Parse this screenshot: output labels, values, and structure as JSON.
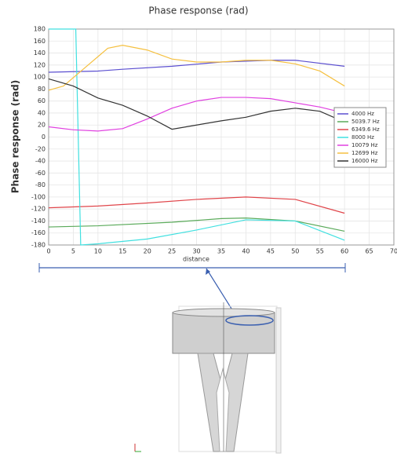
{
  "chart_data": {
    "type": "line",
    "title": "Phase response (rad)",
    "x_label": "distance",
    "y_label": "Phase response (rad)",
    "xlim": [
      0,
      70
    ],
    "xticks": [
      0,
      5,
      10,
      15,
      20,
      25,
      30,
      35,
      40,
      45,
      50,
      55,
      60,
      65,
      70
    ],
    "ylim": [
      -180,
      180
    ],
    "yticks": [
      -180,
      -160,
      -140,
      -120,
      -100,
      -80,
      -60,
      -40,
      -20,
      0,
      20,
      40,
      60,
      80,
      100,
      120,
      140,
      160,
      180
    ],
    "grid": true,
    "legend": "right",
    "series": [
      {
        "name": "4000 Hz",
        "color": "#5b4fd0",
        "x": [
          0,
          10,
          15,
          25,
          35,
          45,
          50,
          60
        ],
        "values": [
          108,
          110,
          113,
          118,
          125,
          128,
          128,
          118
        ]
      },
      {
        "name": "5039.7 Hz",
        "color": "#5aaa5a",
        "x": [
          0,
          10,
          25,
          35,
          40,
          50,
          60
        ],
        "values": [
          -150,
          -148,
          -142,
          -136,
          -135,
          -140,
          -157
        ]
      },
      {
        "name": "6349.6 Hz",
        "color": "#e0454a",
        "x": [
          0,
          10,
          20,
          30,
          40,
          50,
          60
        ],
        "values": [
          -118,
          -115,
          -110,
          -104,
          -100,
          -104,
          -127
        ]
      },
      {
        "name": "8000 Hz",
        "color": "#40e0e0",
        "x": [
          0,
          5.5,
          6.5,
          10,
          20,
          30,
          40,
          50,
          60
        ],
        "values": [
          180,
          180,
          -180,
          -178,
          -170,
          -155,
          -138,
          -140,
          -172
        ]
      },
      {
        "name": "10079 Hz",
        "color": "#e040e0",
        "x": [
          0,
          5,
          10,
          15,
          20,
          25,
          30,
          35,
          40,
          45,
          50,
          55,
          60
        ],
        "values": [
          17,
          12,
          10,
          14,
          30,
          48,
          60,
          66,
          66,
          64,
          57,
          50,
          40
        ]
      },
      {
        "name": "12699 Hz",
        "color": "#f5c040",
        "x": [
          0,
          3,
          8,
          12,
          15,
          20,
          25,
          30,
          35,
          40,
          45,
          50,
          55,
          60
        ],
        "values": [
          78,
          85,
          120,
          148,
          153,
          145,
          130,
          125,
          125,
          128,
          128,
          122,
          110,
          85
        ]
      },
      {
        "name": "16000 Hz",
        "color": "#333333",
        "x": [
          0,
          5,
          10,
          15,
          20,
          25,
          30,
          35,
          40,
          45,
          50,
          55,
          60
        ],
        "values": [
          97,
          85,
          65,
          53,
          35,
          13,
          20,
          27,
          33,
          43,
          48,
          43,
          25
        ]
      }
    ]
  }
}
